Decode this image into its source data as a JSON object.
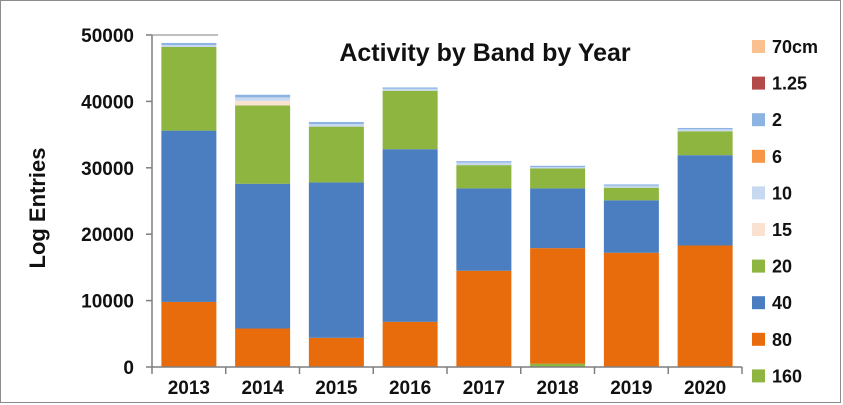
{
  "chart_data": {
    "type": "bar",
    "stacked": true,
    "title": "Activity by Band by Year",
    "ylabel": "Log Entries",
    "xlabel": "",
    "ylim": [
      0,
      50000
    ],
    "yticks": [
      "0",
      "10000",
      "20000",
      "30000",
      "40000",
      "50000"
    ],
    "grid": false,
    "legend_position": "right",
    "categories": [
      "2013",
      "2014",
      "2015",
      "2016",
      "2017",
      "2018",
      "2019",
      "2020"
    ],
    "series": [
      {
        "name": "160",
        "color": "#8db53f",
        "values": [
          0,
          0,
          0,
          0,
          0,
          500,
          0,
          0
        ]
      },
      {
        "name": "80",
        "color": "#e96c0c",
        "values": [
          9800,
          5800,
          4400,
          6800,
          14500,
          17400,
          17200,
          18300
        ]
      },
      {
        "name": "40",
        "color": "#4a7ec0",
        "values": [
          25800,
          21800,
          23400,
          26000,
          12400,
          9000,
          7900,
          13600
        ]
      },
      {
        "name": "20",
        "color": "#8db53f",
        "values": [
          12600,
          11800,
          8400,
          8800,
          3500,
          3000,
          1900,
          3600
        ]
      },
      {
        "name": "15",
        "color": "#fbe1d0",
        "values": [
          0,
          700,
          0,
          0,
          0,
          0,
          0,
          0
        ]
      },
      {
        "name": "10",
        "color": "#c6d9f1",
        "values": [
          300,
          500,
          400,
          300,
          400,
          200,
          300,
          300
        ]
      },
      {
        "name": "6",
        "color": "#f79646",
        "values": [
          0,
          0,
          0,
          0,
          0,
          0,
          0,
          0
        ]
      },
      {
        "name": "2",
        "color": "#8cb3e2",
        "values": [
          300,
          400,
          300,
          200,
          200,
          200,
          200,
          200
        ]
      },
      {
        "name": "1.25",
        "color": "#b4494a",
        "values": [
          0,
          0,
          0,
          0,
          0,
          0,
          0,
          0
        ]
      },
      {
        "name": "70cm",
        "color": "#fac08f",
        "values": [
          0,
          0,
          0,
          0,
          0,
          0,
          0,
          0
        ]
      }
    ],
    "legend_order": [
      "70cm",
      "1.25",
      "2",
      "6",
      "10",
      "15",
      "20",
      "40",
      "80",
      "160"
    ]
  }
}
